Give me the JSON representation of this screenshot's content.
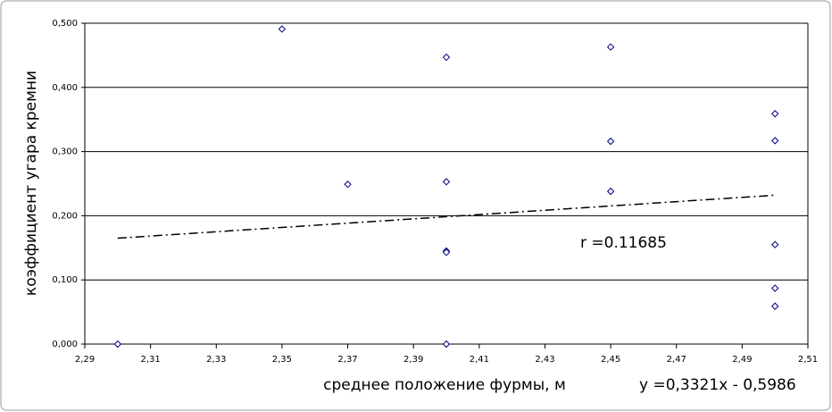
{
  "chart_data": {
    "type": "scatter",
    "x_label": "среднее положение фурмы, м",
    "y_label": "коэффициент угара кремни",
    "x": [
      2.3,
      2.35,
      2.37,
      2.4,
      2.4,
      2.4,
      2.4,
      2.4,
      2.45,
      2.45,
      2.45,
      2.5,
      2.5,
      2.5,
      2.5,
      2.5
    ],
    "values": [
      0.0,
      0.491,
      0.249,
      0.447,
      0.253,
      0.145,
      0.143,
      0.0,
      0.463,
      0.316,
      0.238,
      0.359,
      0.317,
      0.155,
      0.087,
      0.059
    ],
    "color": "#000080",
    "trendline": {
      "x": [
        2.3,
        2.5
      ],
      "values": [
        0.165,
        0.232
      ],
      "color": "#000000"
    },
    "annotations": [
      "r =0.11685",
      "y =0,3321x - 0,5986"
    ],
    "xlim": [
      2.29,
      2.51
    ],
    "xticks": [
      {
        "value": 2.29,
        "label": "2,29"
      },
      {
        "value": 2.31,
        "label": "2,31"
      },
      {
        "value": 2.33,
        "label": "2,33"
      },
      {
        "value": 2.35,
        "label": "2,35"
      },
      {
        "value": 2.37,
        "label": "2,37"
      },
      {
        "value": 2.39,
        "label": "2,39"
      },
      {
        "value": 2.41,
        "label": "2,41"
      },
      {
        "value": 2.43,
        "label": "2,43"
      },
      {
        "value": 2.45,
        "label": "2,45"
      },
      {
        "value": 2.47,
        "label": "2,47"
      },
      {
        "value": 2.49,
        "label": "2,49"
      },
      {
        "value": 2.51,
        "label": "2,51"
      }
    ],
    "ylim": [
      0,
      0.5
    ],
    "yticks": [
      {
        "value": 0,
        "label": "0,000"
      },
      {
        "value": 0.1,
        "label": "0,100"
      },
      {
        "value": 0.2,
        "label": "0,200"
      },
      {
        "value": 0.3,
        "label": "0,300"
      },
      {
        "value": 0.4,
        "label": "0,400"
      },
      {
        "value": 0.5,
        "label": "0,500"
      }
    ],
    "grid": true
  }
}
